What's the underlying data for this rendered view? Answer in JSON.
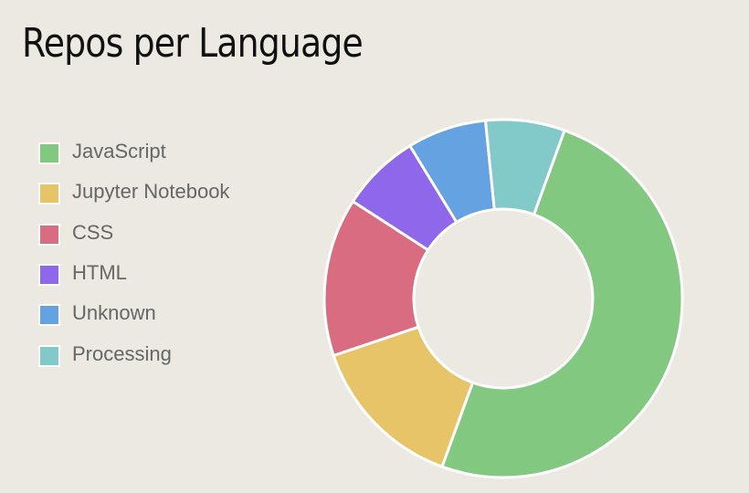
{
  "chart_data": {
    "type": "doughnut",
    "title": "Repos per Language",
    "categories": [
      "JavaScript",
      "Jupyter Notebook",
      "CSS",
      "HTML",
      "Unknown",
      "Processing"
    ],
    "values": [
      7,
      2,
      2,
      1,
      1,
      1
    ],
    "colors": [
      "#82c881",
      "#e8c468",
      "#d96c80",
      "#8f67ea",
      "#64a2e2",
      "#82c9ca"
    ],
    "legend": "left",
    "start_angle_deg": 20
  }
}
